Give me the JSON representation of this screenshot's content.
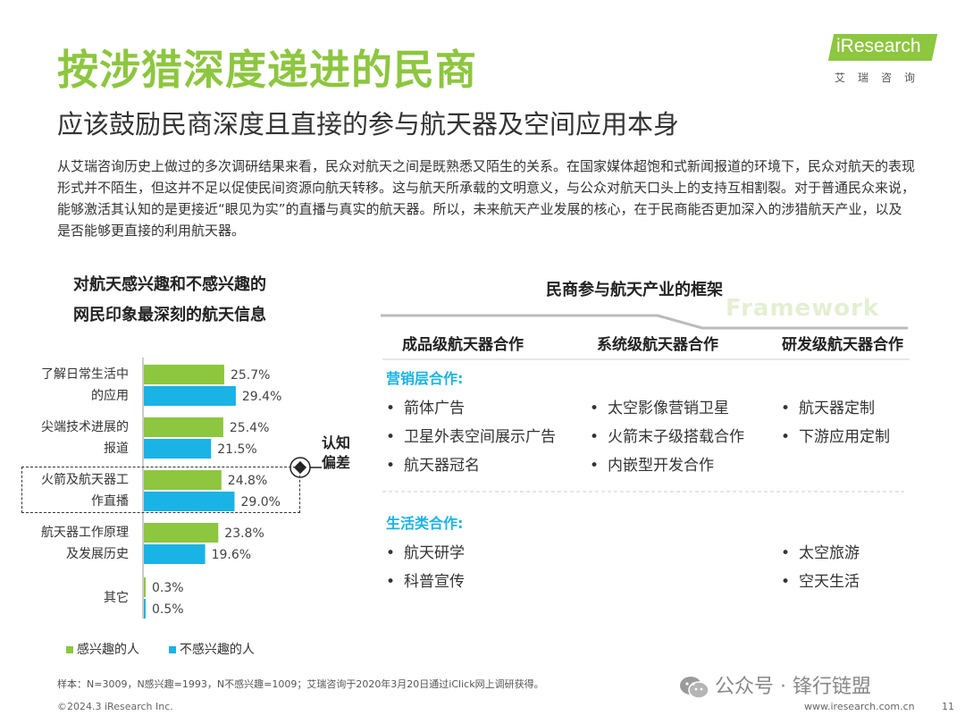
{
  "header": {
    "title": "按涉猎深度递进的民商",
    "subtitle": "应该鼓励民商深度且直接的参与航天器及空间应用本身",
    "logo": {
      "brand": "iResearch",
      "cn": "艾瑞咨询"
    }
  },
  "intro": "从艾瑞咨询历史上做过的多次调研结果来看，民众对航天之间是既熟悉又陌生的关系。在国家媒体超饱和式新闻报道的环境下，民众对航天的表现形式并不陌生，但这并不足以促使民间资源向航天转移。这与航天所承载的文明意义，与公众对航天口头上的支持互相割裂。对于普通民众来说，能够激活其认知的是更接近“眼见为实”的直播与真实的航天器。所以，未来航天产业发展的核心，在于民商能否更加深入的涉猎航天产业，以及是否能够更直接的利用航天器。",
  "chart_data": {
    "type": "bar",
    "orientation": "horizontal",
    "title": "对航天感兴趣和不感兴趣的网民印象最深刻的航天信息",
    "title_lines": [
      "对航天感兴趣和不感兴趣的",
      "网民印象最深刻的航天信息"
    ],
    "categories": [
      "了解日常生活中的应用",
      "尖端技术进展的报道",
      "火箭及航天器工作直播",
      "航天器工作原理及发展历史",
      "其它"
    ],
    "category_lines": [
      [
        "了解日常生活中",
        "的应用"
      ],
      [
        "尖端技术进展的",
        "报道"
      ],
      [
        "火箭及航天器工",
        "作直播"
      ],
      [
        "航天器工作原理",
        "及发展历史"
      ],
      [
        "其它"
      ]
    ],
    "series": [
      {
        "name": "感兴趣的人",
        "color": "#8dc63f",
        "values": [
          25.7,
          25.4,
          24.8,
          23.8,
          0.3
        ]
      },
      {
        "name": "不感兴趣的人",
        "color": "#1ab3e6",
        "values": [
          29.4,
          21.5,
          29.0,
          19.6,
          0.5
        ]
      }
    ],
    "value_format": "percent",
    "highlight_category": "火箭及航天器工作直播",
    "annotation": "认知偏差",
    "annotation_lines": [
      "认知",
      "偏差"
    ],
    "legend": {
      "position": "bottom-left"
    },
    "grid": false
  },
  "framework": {
    "title": "民商参与航天产业的框架",
    "watermark": "Framework",
    "columns": [
      "成品级航天器合作",
      "系统级航天器合作",
      "研发级航天器合作"
    ],
    "sections": [
      {
        "name": "营销层合作:",
        "items": [
          [
            "箭体广告",
            "卫星外表空间展示广告",
            "航天器冠名"
          ],
          [
            "太空影像营销卫星",
            "火箭末子级搭载合作",
            "内嵌型开发合作"
          ],
          [
            "航天器定制",
            "下游应用定制"
          ]
        ]
      },
      {
        "name": "生活类合作:",
        "items": [
          [
            "航天研学",
            "科普宣传"
          ],
          [],
          [
            "太空旅游",
            "空天生活"
          ]
        ]
      }
    ],
    "bullet": "•"
  },
  "footer": {
    "note": "样本：N=3009，N感兴趣=1993，N不感兴趣=1009；艾瑞咨询于2020年3月20日通过iClick网上调研获得。",
    "copyright": "©2024.3 iResearch Inc.",
    "url": "www.iresearch.com.cn",
    "page": "11",
    "wechat": "公众号 · 锋行链盟"
  },
  "colors": {
    "accent": "#8dc63f",
    "secondary": "#1ab3e6"
  }
}
